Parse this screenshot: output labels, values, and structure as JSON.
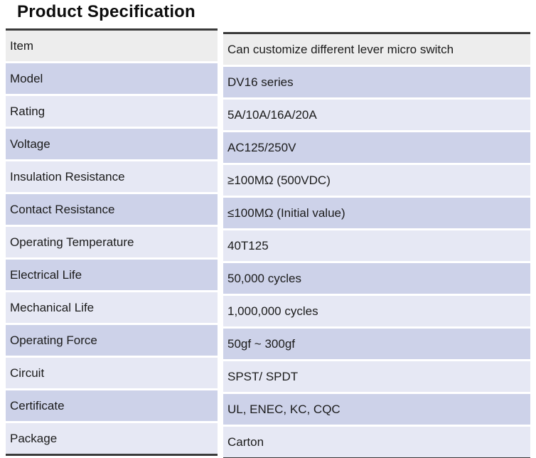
{
  "title": "Product Specification",
  "colors": {
    "row_gray": "#ededed",
    "row_dark": "#cdd2e9",
    "row_light": "#e6e8f4",
    "border": "#3a3a3a",
    "text": "#1b1b1b"
  },
  "table": {
    "rows": [
      {
        "label": "Item",
        "value": "Can customize different lever micro switch"
      },
      {
        "label": "Model",
        "value": "DV16 series"
      },
      {
        "label": "Rating",
        "value": "5A/10A/16A/20A"
      },
      {
        "label": "Voltage",
        "value": "AC125/250V"
      },
      {
        "label": "Insulation Resistance",
        "value": "≥100MΩ (500VDC)"
      },
      {
        "label": "Contact Resistance",
        "value": "≤100MΩ (Initial value)"
      },
      {
        "label": "Operating Temperature",
        "value": "40T125"
      },
      {
        "label": "Electrical Life",
        "value": "50,000 cycles"
      },
      {
        "label": "Mechanical Life",
        "value": "1,000,000 cycles"
      },
      {
        "label": "Operating Force",
        "value": "50gf ~ 300gf"
      },
      {
        "label": "Circuit",
        "value": "SPST/ SPDT"
      },
      {
        "label": "Certificate",
        "value": "UL, ENEC, KC, CQC"
      },
      {
        "label": "Package",
        "value": "Carton"
      }
    ]
  }
}
